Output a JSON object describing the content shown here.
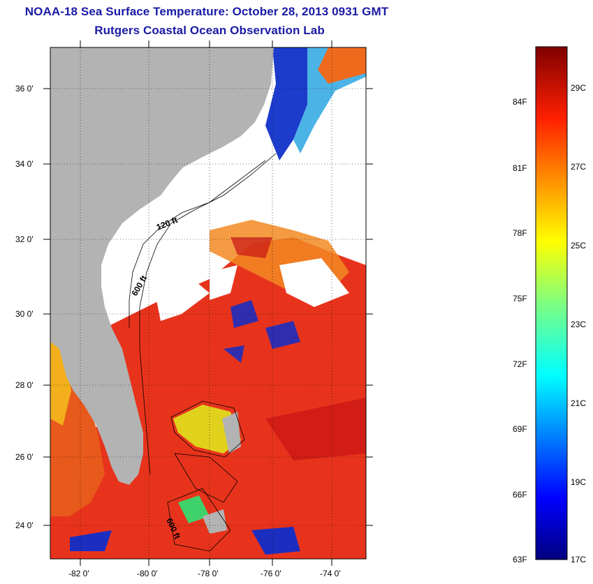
{
  "title": {
    "line1": "NOAA-18 Sea Surface Temperature:  October 28, 2013 0931 GMT",
    "line2": "Rutgers Coastal Ocean Observation Lab"
  },
  "map": {
    "lat_labels": [
      "36 0'",
      "34 0'",
      "32 0'",
      "30 0'",
      "28 0'",
      "26 0'",
      "24 0'"
    ],
    "lon_labels": [
      "-82 0'",
      "-80 0'",
      "-78 0'",
      "-76 0'",
      "-74 0'"
    ],
    "contour_labels": [
      "120 ft",
      "600 ft",
      "600 ft"
    ],
    "colors": {
      "land": "#b3b3b3",
      "cloud": "#ffffff",
      "warm": "#e8261c",
      "orange": "#f08a1e",
      "yellow": "#f3e81c",
      "cool": "#1f3fbf",
      "cold": "#0a1f8c"
    }
  },
  "colorbar": {
    "fahrenheit": [
      "84F",
      "81F",
      "78F",
      "75F",
      "72F",
      "69F",
      "66F",
      "63F"
    ],
    "celsius": [
      "29C",
      "27C",
      "25C",
      "23C",
      "21C",
      "19C",
      "17C"
    ],
    "scale_min_f": 63,
    "scale_max_f": 86,
    "scale_min_c": 17,
    "scale_max_c": 30
  }
}
